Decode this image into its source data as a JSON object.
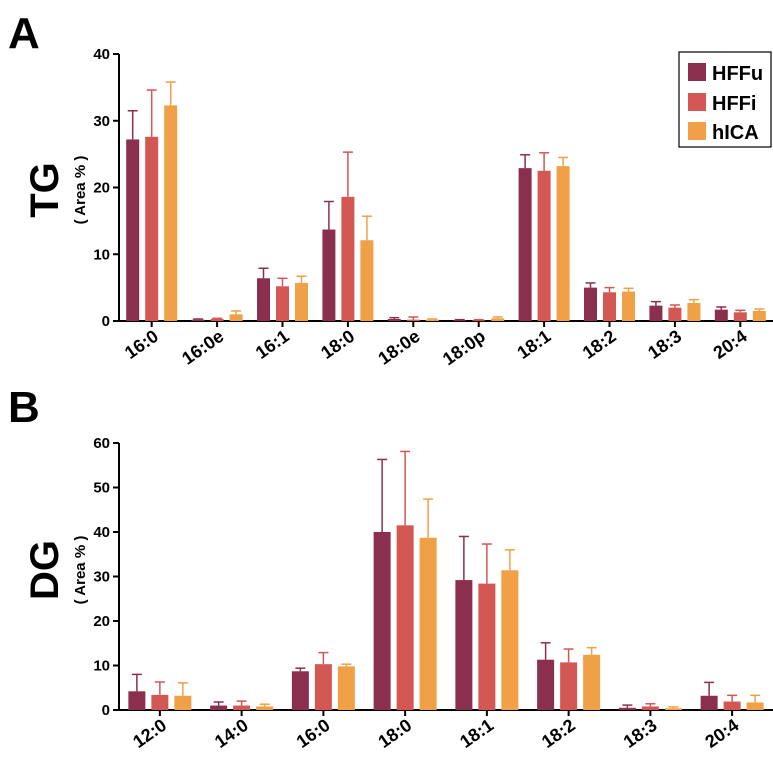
{
  "colors": {
    "HFFu": "#8b2f4e",
    "HFFi": "#d35752",
    "hICA": "#f0a046"
  },
  "chart_data": [
    {
      "panel": "A",
      "type": "bar",
      "ylabel": "TG",
      "ylabel_sub": "( Area % )",
      "ylim": [
        0,
        40
      ],
      "yticks": [
        0,
        10,
        20,
        30,
        40
      ],
      "categories": [
        "16:0",
        "16:0e",
        "16:1",
        "18:0",
        "18:0e",
        "18:0p",
        "18:1",
        "18:2",
        "18:3",
        "20:4"
      ],
      "legend": {
        "position": "top-right",
        "entries": [
          "HFFu",
          "HFFi",
          "hICA"
        ]
      },
      "series": [
        {
          "name": "HFFu",
          "values": [
            27.2,
            0.2,
            6.4,
            13.7,
            0.3,
            0.1,
            22.9,
            5.0,
            2.3,
            1.7
          ],
          "errors": [
            4.3,
            0.1,
            1.5,
            4.2,
            0.2,
            0.1,
            2.0,
            0.7,
            0.6,
            0.4
          ]
        },
        {
          "name": "HFFi",
          "values": [
            27.6,
            0.3,
            5.2,
            18.6,
            0.2,
            0.1,
            22.5,
            4.3,
            2.0,
            1.3
          ],
          "errors": [
            7.0,
            0.1,
            1.2,
            6.7,
            0.4,
            0.1,
            2.7,
            0.7,
            0.4,
            0.3
          ]
        },
        {
          "name": "hICA",
          "values": [
            32.3,
            1.0,
            5.7,
            12.1,
            0.2,
            0.4,
            23.2,
            4.4,
            2.7,
            1.5
          ],
          "errors": [
            3.5,
            0.5,
            1.0,
            3.6,
            0.1,
            0.2,
            1.3,
            0.5,
            0.5,
            0.3
          ]
        }
      ]
    },
    {
      "panel": "B",
      "type": "bar",
      "ylabel": "DG",
      "ylabel_sub": "( Area % )",
      "ylim": [
        0,
        60
      ],
      "yticks": [
        0,
        10,
        20,
        30,
        40,
        50,
        60
      ],
      "categories": [
        "12:0",
        "14:0",
        "16:0",
        "18:0",
        "18:1",
        "18:2",
        "18:3",
        "20:4"
      ],
      "series": [
        {
          "name": "HFFu",
          "values": [
            4.2,
            1.0,
            8.7,
            40.0,
            29.2,
            11.3,
            0.5,
            3.2
          ],
          "errors": [
            3.8,
            0.8,
            0.7,
            16.3,
            9.8,
            3.8,
            0.6,
            3.0
          ]
        },
        {
          "name": "HFFi",
          "values": [
            3.4,
            1.0,
            10.3,
            41.5,
            28.4,
            10.7,
            0.8,
            1.9
          ],
          "errors": [
            2.9,
            1.0,
            2.6,
            16.6,
            8.9,
            3.0,
            0.6,
            1.4
          ]
        },
        {
          "name": "hICA",
          "values": [
            3.2,
            0.8,
            9.8,
            38.7,
            31.4,
            12.4,
            0.4,
            1.7
          ],
          "errors": [
            2.9,
            0.5,
            0.5,
            8.7,
            4.6,
            1.6,
            0.3,
            1.6
          ]
        }
      ]
    }
  ]
}
